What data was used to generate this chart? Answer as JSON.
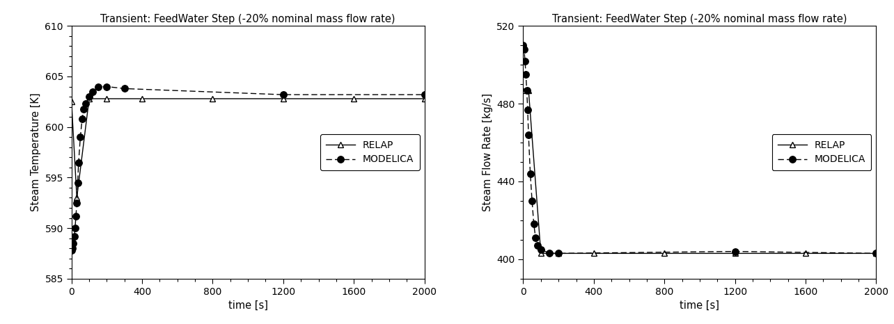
{
  "title": "Transient: FeedWater Step (-20% nominal mass flow rate)",
  "left_ylabel": "Steam Temperature [K]",
  "right_ylabel": "Steam Flow Rate [kg/s]",
  "xlabel": "time [s]",
  "relap_temp_x": [
    0,
    30,
    100,
    200,
    400,
    800,
    1200,
    1600,
    2000
  ],
  "relap_temp_y": [
    602.5,
    593.0,
    602.8,
    602.8,
    602.8,
    602.8,
    602.8,
    602.8,
    602.8
  ],
  "modelica_temp_x": [
    0,
    5,
    10,
    15,
    20,
    25,
    30,
    35,
    40,
    50,
    60,
    70,
    80,
    100,
    120,
    150,
    200,
    300,
    1200,
    2000
  ],
  "modelica_temp_y": [
    587.8,
    588.0,
    588.5,
    589.2,
    590.0,
    591.2,
    592.5,
    594.5,
    596.5,
    599.0,
    600.8,
    601.8,
    602.3,
    603.0,
    603.5,
    604.0,
    604.0,
    603.8,
    603.2,
    603.2
  ],
  "relap_flow_x": [
    0,
    30,
    100,
    200,
    400,
    800,
    1200,
    1600,
    2000
  ],
  "relap_flow_y": [
    487.0,
    487.0,
    403.0,
    403.0,
    403.0,
    403.0,
    403.0,
    403.0,
    403.0
  ],
  "modelica_flow_x": [
    0,
    5,
    10,
    15,
    20,
    25,
    30,
    40,
    50,
    60,
    70,
    80,
    100,
    150,
    200,
    1200,
    2000
  ],
  "modelica_flow_y": [
    510,
    508,
    502,
    495,
    487,
    477,
    464,
    444,
    430,
    418,
    411,
    407,
    405,
    403,
    403,
    404,
    403
  ],
  "ylim_temp": [
    585,
    610
  ],
  "yticks_temp": [
    585,
    590,
    595,
    600,
    605,
    610
  ],
  "ylim_flow": [
    390,
    520
  ],
  "yticks_flow": [
    400,
    440,
    480,
    520
  ],
  "xlim": [
    0,
    2000
  ],
  "xticks": [
    0,
    400,
    800,
    1200,
    1600,
    2000
  ],
  "line_color": "#000000",
  "bg_color": "#ffffff",
  "marker_relap": "^",
  "marker_modelica": "o",
  "markersize_relap": 6,
  "markersize_modelica": 7,
  "relap_linestyle": "-",
  "modelica_linestyle": "--",
  "legend_relap": "RELAP",
  "legend_modelica": "MODELICA",
  "title_fontsize": 10.5,
  "label_fontsize": 10.5,
  "tick_fontsize": 10,
  "legend_fontsize": 10
}
